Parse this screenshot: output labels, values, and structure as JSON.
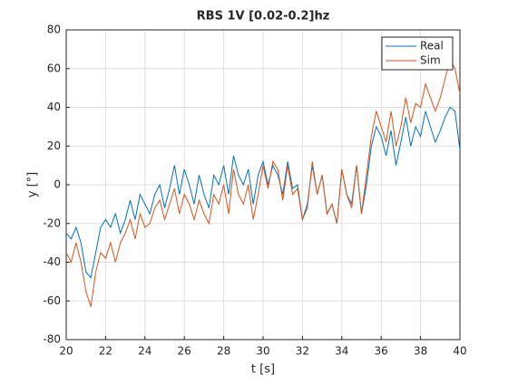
{
  "chart_data": {
    "type": "line",
    "title": "RBS 1V  [0.02-0.2]hz",
    "x_label": "t [s]",
    "y_label": "y [°]",
    "x": [
      20,
      20.25,
      20.5,
      20.75,
      21,
      21.25,
      21.5,
      21.75,
      22,
      22.25,
      22.5,
      22.75,
      23,
      23.25,
      23.5,
      23.75,
      24,
      24.25,
      24.5,
      24.75,
      25,
      25.25,
      25.5,
      25.75,
      26,
      26.25,
      26.5,
      26.75,
      27,
      27.25,
      27.5,
      27.75,
      28,
      28.25,
      28.5,
      28.75,
      29,
      29.25,
      29.5,
      29.75,
      30,
      30.25,
      30.5,
      30.75,
      31,
      31.25,
      31.5,
      31.75,
      32,
      32.25,
      32.5,
      32.75,
      33,
      33.25,
      33.5,
      33.75,
      34,
      34.25,
      34.5,
      34.75,
      35,
      35.25,
      35.5,
      35.75,
      36,
      36.25,
      36.5,
      36.75,
      37,
      37.25,
      37.5,
      37.75,
      38,
      38.25,
      38.5,
      38.75,
      39,
      39.25,
      39.5,
      39.75,
      40
    ],
    "series": [
      {
        "name": "Real",
        "color": "#0072bd",
        "values": [
          -25,
          -28,
          -22,
          -30,
          -45,
          -48,
          -35,
          -22,
          -18,
          -22,
          -15,
          -25,
          -18,
          -8,
          -18,
          -5,
          -10,
          -15,
          -5,
          0,
          -12,
          -2,
          10,
          -5,
          8,
          0,
          -10,
          5,
          -5,
          -12,
          5,
          0,
          10,
          -5,
          15,
          5,
          0,
          8,
          -10,
          5,
          12,
          0,
          10,
          5,
          -5,
          12,
          -2,
          0,
          -18,
          -10,
          10,
          -5,
          5,
          -15,
          -10,
          -20,
          8,
          -5,
          -10,
          10,
          -15,
          0,
          20,
          30,
          25,
          15,
          28,
          10,
          22,
          35,
          20,
          30,
          25,
          38,
          30,
          22,
          28,
          35,
          40,
          38,
          18
        ]
      },
      {
        "name": "Sim",
        "color": "#d95319",
        "values": [
          -35,
          -40,
          -30,
          -40,
          -55,
          -63,
          -45,
          -35,
          -38,
          -30,
          -40,
          -30,
          -25,
          -18,
          -28,
          -15,
          -22,
          -20,
          -12,
          -8,
          -18,
          -10,
          -2,
          -15,
          -5,
          -10,
          -18,
          -8,
          -15,
          -20,
          -5,
          -10,
          0,
          -15,
          8,
          -5,
          -10,
          0,
          -18,
          -5,
          10,
          -2,
          12,
          8,
          -8,
          10,
          -5,
          -2,
          -18,
          -12,
          12,
          -5,
          5,
          -15,
          -10,
          -20,
          8,
          -5,
          -12,
          10,
          -15,
          5,
          25,
          38,
          30,
          22,
          38,
          20,
          30,
          45,
          32,
          42,
          40,
          52,
          45,
          38,
          45,
          55,
          65,
          60,
          47
        ]
      }
    ],
    "xlim": [
      20,
      40
    ],
    "xticks": [
      20,
      22,
      24,
      26,
      28,
      30,
      32,
      34,
      36,
      38,
      40
    ],
    "ylim": [
      -80,
      80
    ],
    "yticks": [
      -80,
      -60,
      -40,
      -20,
      0,
      20,
      40,
      60,
      80
    ],
    "grid": true,
    "legend": "northeast"
  }
}
